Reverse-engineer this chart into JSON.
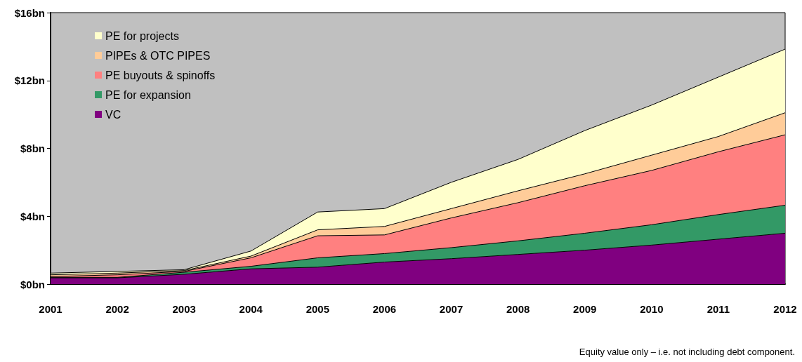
{
  "chart_data": {
    "type": "area",
    "stacked": true,
    "categories": [
      "2001",
      "2002",
      "2003",
      "2004",
      "2005",
      "2006",
      "2007",
      "2008",
      "2009",
      "2010",
      "2011",
      "2012"
    ],
    "series": [
      {
        "name": "VC",
        "color": "#800080",
        "values": [
          0.37,
          0.37,
          0.58,
          0.9,
          1.0,
          1.3,
          1.5,
          1.75,
          2.0,
          2.3,
          2.65,
          3.0
        ]
      },
      {
        "name": "PE for expansion",
        "color": "#339966",
        "values": [
          0.03,
          0.03,
          0.12,
          0.15,
          0.55,
          0.5,
          0.65,
          0.8,
          1.0,
          1.2,
          1.45,
          1.65
        ]
      },
      {
        "name": "PE buyouts & spinoffs",
        "color": "#ff8080",
        "values": [
          0.05,
          0.15,
          0.05,
          0.5,
          1.3,
          1.1,
          1.75,
          2.25,
          2.8,
          3.2,
          3.7,
          4.15
        ]
      },
      {
        "name": "PIPEs & OTC PIPES",
        "color": "#ffcc99",
        "values": [
          0.1,
          0.1,
          0.05,
          0.1,
          0.35,
          0.5,
          0.55,
          0.7,
          0.7,
          0.9,
          0.9,
          1.3
        ]
      },
      {
        "name": "PE for projects",
        "color": "#ffffcc",
        "values": [
          0.1,
          0.1,
          0.05,
          0.3,
          1.05,
          1.05,
          1.55,
          1.85,
          2.55,
          2.95,
          3.5,
          3.75
        ]
      }
    ],
    "ylim": [
      0,
      16
    ],
    "yticks": [
      {
        "value": 0,
        "label": "$0bn"
      },
      {
        "value": 4,
        "label": "$4bn"
      },
      {
        "value": 8,
        "label": "$8bn"
      },
      {
        "value": 12,
        "label": "$12bn"
      },
      {
        "value": 16,
        "label": "$16bn"
      }
    ],
    "grid": false,
    "legend": "top left",
    "marker": "none",
    "line_style": "solid",
    "annotations": [
      "Equity value only – i.e. not including debt component."
    ]
  }
}
